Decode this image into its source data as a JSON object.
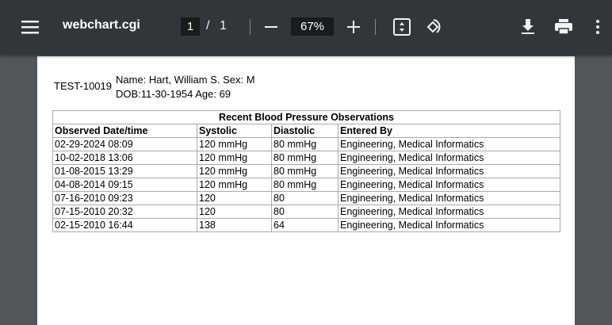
{
  "toolbar": {
    "title": "webchart.cgi",
    "page_current": "1",
    "page_sep": "/",
    "page_total": "1",
    "zoom": "67%",
    "icons": [
      "menu-icon",
      "zoom-out-icon",
      "zoom-in-icon",
      "fit-page-icon",
      "rotate-icon",
      "download-icon",
      "print-icon",
      "more-icon"
    ]
  },
  "patient": {
    "id": "TEST-10019",
    "name_line": "Name: Hart, William S. Sex: M",
    "dob_line": "DOB:11-30-1954 Age: 69"
  },
  "table": {
    "title": "Recent Blood Pressure Observations",
    "headers": [
      "Observed Date/time",
      "Systolic",
      "Diastolic",
      "Entered By"
    ],
    "rows": [
      [
        "02-29-2024 08:09",
        "120 mmHg",
        "80 mmHg",
        "Engineering, Medical Informatics"
      ],
      [
        "10-02-2018 13:06",
        "120 mmHg",
        "80 mmHg",
        "Engineering, Medical Informatics"
      ],
      [
        "01-08-2015 13:29",
        "120 mmHg",
        "80 mmHg",
        "Engineering, Medical Informatics"
      ],
      [
        "04-08-2014 09:15",
        "120 mmHg",
        "80 mmHg",
        "Engineering, Medical Informatics"
      ],
      [
        "07-16-2010 09:23",
        "120",
        "80",
        "Engineering, Medical Informatics"
      ],
      [
        "07-15-2010 20:32",
        "120",
        "80",
        "Engineering, Medical Informatics"
      ],
      [
        "02-15-2010 16:44",
        "138",
        "64",
        "Engineering, Medical Informatics"
      ]
    ]
  }
}
